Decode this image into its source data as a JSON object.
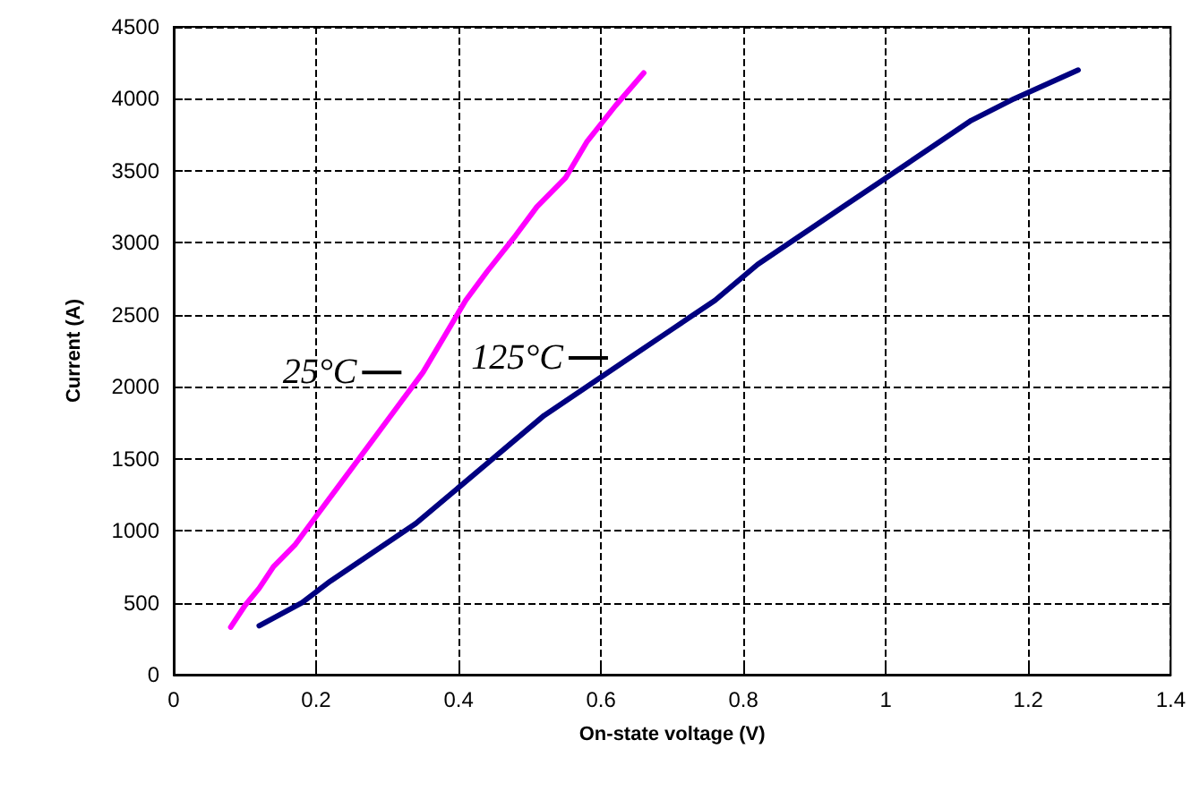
{
  "chart_data": {
    "type": "line",
    "xlabel": "On-state voltage (V)",
    "ylabel": "Current (A)",
    "xlim": [
      0,
      1.4
    ],
    "xticks": [
      0,
      0.2,
      0.4,
      0.6,
      0.8,
      1,
      1.2,
      1.4
    ],
    "ylim": [
      0,
      4500
    ],
    "yticks": [
      0,
      500,
      1000,
      1500,
      2000,
      2500,
      3000,
      3500,
      4000,
      4500
    ],
    "grid": true,
    "marker": "none",
    "series": [
      {
        "color": "#ff00ff",
        "x": [
          0.08,
          0.1,
          0.12,
          0.14,
          0.17,
          0.2,
          0.23,
          0.26,
          0.29,
          0.32,
          0.35,
          0.38,
          0.41,
          0.44,
          0.48,
          0.51,
          0.55,
          0.58,
          0.62,
          0.66
        ],
        "values": [
          330,
          480,
          600,
          750,
          900,
          1100,
          1300,
          1500,
          1700,
          1900,
          2100,
          2350,
          2600,
          2800,
          3050,
          3250,
          3450,
          3700,
          3950,
          4180
        ]
      },
      {
        "color": "#000080",
        "x": [
          0.12,
          0.18,
          0.22,
          0.28,
          0.34,
          0.4,
          0.46,
          0.52,
          0.58,
          0.64,
          0.7,
          0.76,
          0.82,
          0.88,
          0.94,
          1.0,
          1.06,
          1.12,
          1.18,
          1.27
        ],
        "values": [
          340,
          500,
          650,
          850,
          1050,
          1300,
          1550,
          1800,
          2000,
          2200,
          2400,
          2600,
          2850,
          3050,
          3250,
          3450,
          3650,
          3850,
          4000,
          4200
        ]
      }
    ],
    "annotations": [
      {
        "text": "25°C",
        "x": 0.35,
        "y": 2100
      },
      {
        "text": "125°C",
        "x": 0.64,
        "y": 2200
      }
    ]
  }
}
